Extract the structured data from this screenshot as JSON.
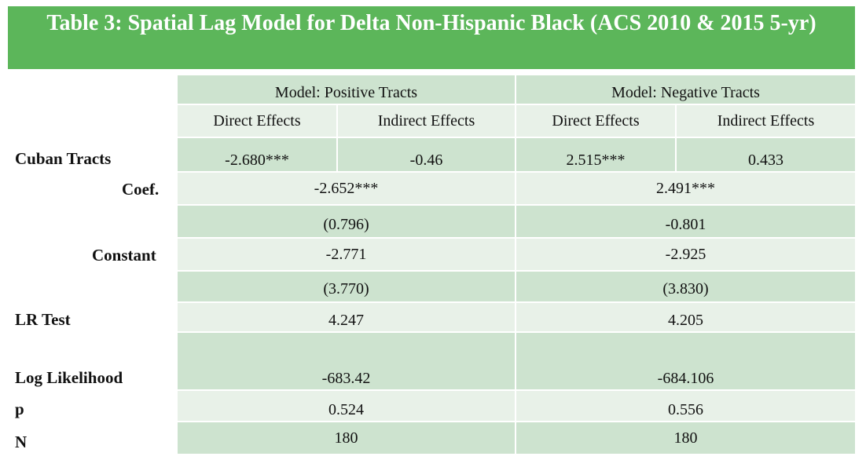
{
  "title": "Table 3: Spatial Lag Model for Delta Non-Hispanic Black (ACS 2010 & 2015 5-yr)",
  "header": {
    "model_positive": "Model: Positive Tracts",
    "model_negative": "Model: Negative Tracts",
    "direct_effects": "Direct Effects",
    "indirect_effects": "Indirect Effects"
  },
  "rows": {
    "cuban_tracts": {
      "label": "Cuban Tracts",
      "pos_direct": "-2.680***",
      "pos_indirect": "-0.46",
      "neg_direct": "2.515***",
      "neg_indirect": "0.433"
    },
    "coef": {
      "label": "Coef.",
      "pos": "-2.652***",
      "neg": "2.491***"
    },
    "coef_se": {
      "pos": "(0.796)",
      "neg": "-0.801"
    },
    "constant": {
      "label": "Constant",
      "pos": "-2.771",
      "neg": "-2.925"
    },
    "constant_se": {
      "pos": "(3.770)",
      "neg": "(3.830)"
    },
    "lr_test": {
      "label": "LR Test",
      "pos": "4.247",
      "neg": "4.205"
    },
    "log_likelihood": {
      "label": "Log Likelihood",
      "pos": "-683.42",
      "neg": "-684.106"
    },
    "p": {
      "label": "p",
      "pos": "0.524",
      "neg": "0.556"
    },
    "n": {
      "label": "N",
      "pos": "180",
      "neg": "180"
    }
  }
}
